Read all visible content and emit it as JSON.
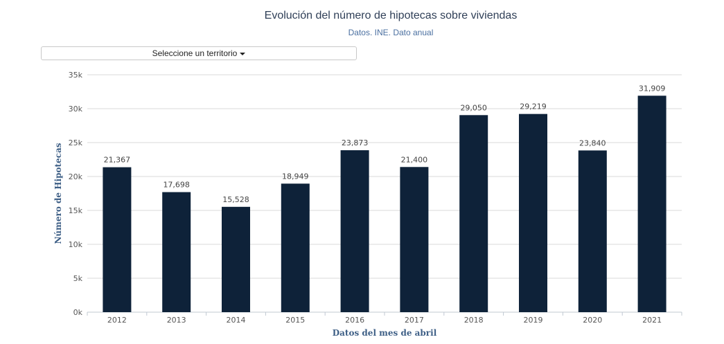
{
  "header": {
    "title": "Evolución del número de hipotecas sobre viviendas",
    "subtitle": "Datos. INE. Dato anual"
  },
  "territory_select": {
    "label": "Seleccione un territorio"
  },
  "colors": {
    "bar": "#0e2239",
    "grid": "#d9d9d9",
    "axis_title": "#3e5f86"
  },
  "chart_data": {
    "type": "bar",
    "title": "Evolución del número de hipotecas sobre viviendas",
    "subtitle": "Datos. INE. Dato anual",
    "xlabel": "Datos del mes de abril",
    "ylabel": "Número de Hipotecas",
    "categories": [
      "2012",
      "2013",
      "2014",
      "2015",
      "2016",
      "2017",
      "2018",
      "2019",
      "2020",
      "2021"
    ],
    "values": [
      21367,
      17698,
      15528,
      18949,
      23873,
      21400,
      29050,
      29219,
      23840,
      31909
    ],
    "data_labels": [
      "21,367",
      "17,698",
      "15,528",
      "18,949",
      "23,873",
      "21,400",
      "29,050",
      "29,219",
      "23,840",
      "31,909"
    ],
    "y_ticks": [
      0,
      5000,
      10000,
      15000,
      20000,
      25000,
      30000,
      35000
    ],
    "y_tick_labels": [
      "0k",
      "5k",
      "10k",
      "15k",
      "20k",
      "25k",
      "30k",
      "35k"
    ],
    "ylim": [
      0,
      35000
    ],
    "grid": true,
    "legend": "none"
  }
}
